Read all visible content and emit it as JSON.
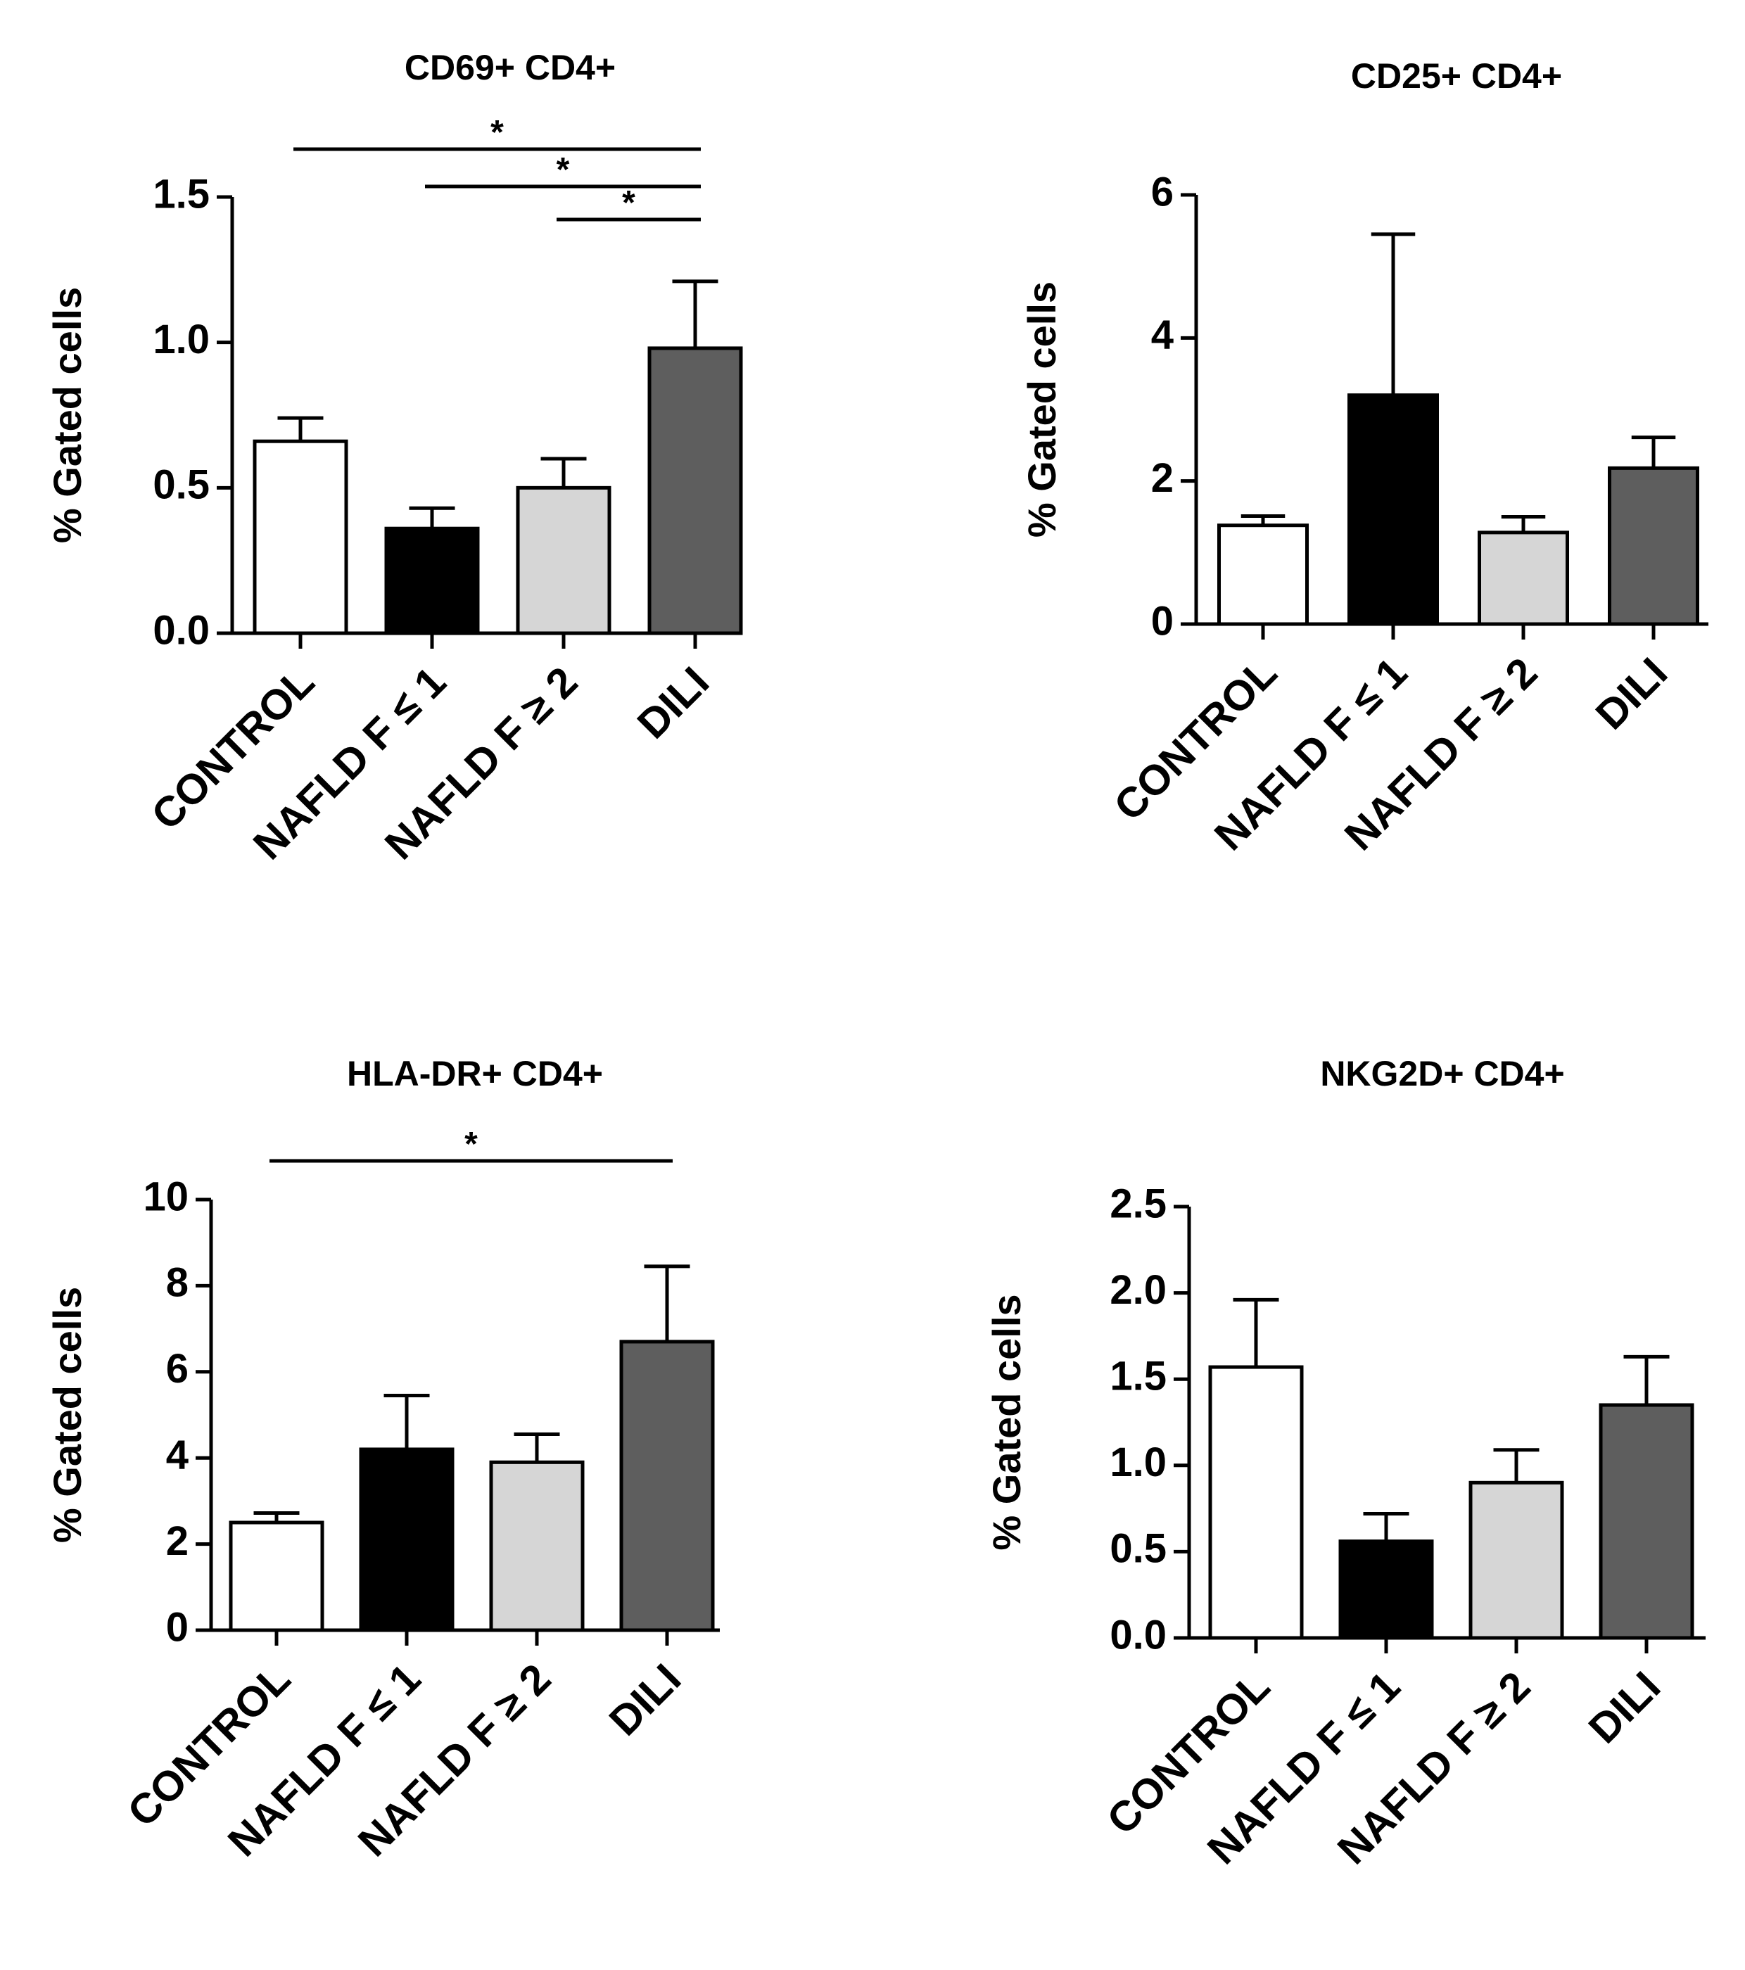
{
  "chart_data": [
    {
      "type": "bar",
      "title": "CD69+ CD4+",
      "ylabel": "% Gated cells",
      "xlabel": "",
      "categories": [
        "CONTROL",
        "NAFLD F ≤ 1",
        "NAFLD F ≥ 2",
        "DILI"
      ],
      "values": [
        0.66,
        0.36,
        0.5,
        0.98
      ],
      "errors": [
        0.08,
        0.07,
        0.1,
        0.23
      ],
      "colors": [
        "#ffffff",
        "#000000",
        "#d6d6d6",
        "#5e5e5e"
      ],
      "ylim": [
        0,
        1.5
      ],
      "yticks": [
        "0.0",
        "0.5",
        "1.0",
        "1.5"
      ],
      "significance": [
        {
          "from": 0,
          "to": 3,
          "label": "*"
        },
        {
          "from": 1,
          "to": 3,
          "label": "*"
        },
        {
          "from": 2,
          "to": 3,
          "label": "*"
        }
      ]
    },
    {
      "type": "bar",
      "title": "CD25+ CD4+",
      "ylabel": "% Gated cells",
      "xlabel": "",
      "categories": [
        "CONTROL",
        "NAFLD F ≤ 1",
        "NAFLD F ≥ 2",
        "DILI"
      ],
      "values": [
        1.38,
        3.2,
        1.28,
        2.18
      ],
      "errors": [
        0.13,
        2.25,
        0.22,
        0.43
      ],
      "colors": [
        "#ffffff",
        "#000000",
        "#d6d6d6",
        "#5e5e5e"
      ],
      "ylim": [
        0,
        6
      ],
      "yticks": [
        "0",
        "2",
        "4",
        "6"
      ],
      "significance": []
    },
    {
      "type": "bar",
      "title": "HLA-DR+ CD4+",
      "ylabel": "% Gated cells",
      "xlabel": "",
      "categories": [
        "CONTROL",
        "NAFLD F ≤ 1",
        "NAFLD F ≥ 2",
        "DILI"
      ],
      "values": [
        2.5,
        4.2,
        3.9,
        6.7
      ],
      "errors": [
        0.22,
        1.25,
        0.65,
        1.75
      ],
      "colors": [
        "#ffffff",
        "#000000",
        "#d6d6d6",
        "#5e5e5e"
      ],
      "ylim": [
        0,
        10
      ],
      "yticks": [
        "0",
        "2",
        "4",
        "6",
        "8",
        "10"
      ],
      "significance": [
        {
          "from": 0,
          "to": 3,
          "label": "*"
        }
      ]
    },
    {
      "type": "bar",
      "title": "NKG2D+ CD4+",
      "ylabel": "% Gated cells",
      "xlabel": "",
      "categories": [
        "CONTROL",
        "NAFLD F ≤ 1",
        "NAFLD F ≥ 2",
        "DILI"
      ],
      "values": [
        1.57,
        0.56,
        0.9,
        1.35
      ],
      "errors": [
        0.39,
        0.16,
        0.19,
        0.28
      ],
      "colors": [
        "#ffffff",
        "#000000",
        "#d6d6d6",
        "#5e5e5e"
      ],
      "ylim": [
        0,
        2.5
      ],
      "yticks": [
        "0.0",
        "0.5",
        "1.0",
        "1.5",
        "2.0",
        "2.5"
      ],
      "significance": []
    }
  ]
}
